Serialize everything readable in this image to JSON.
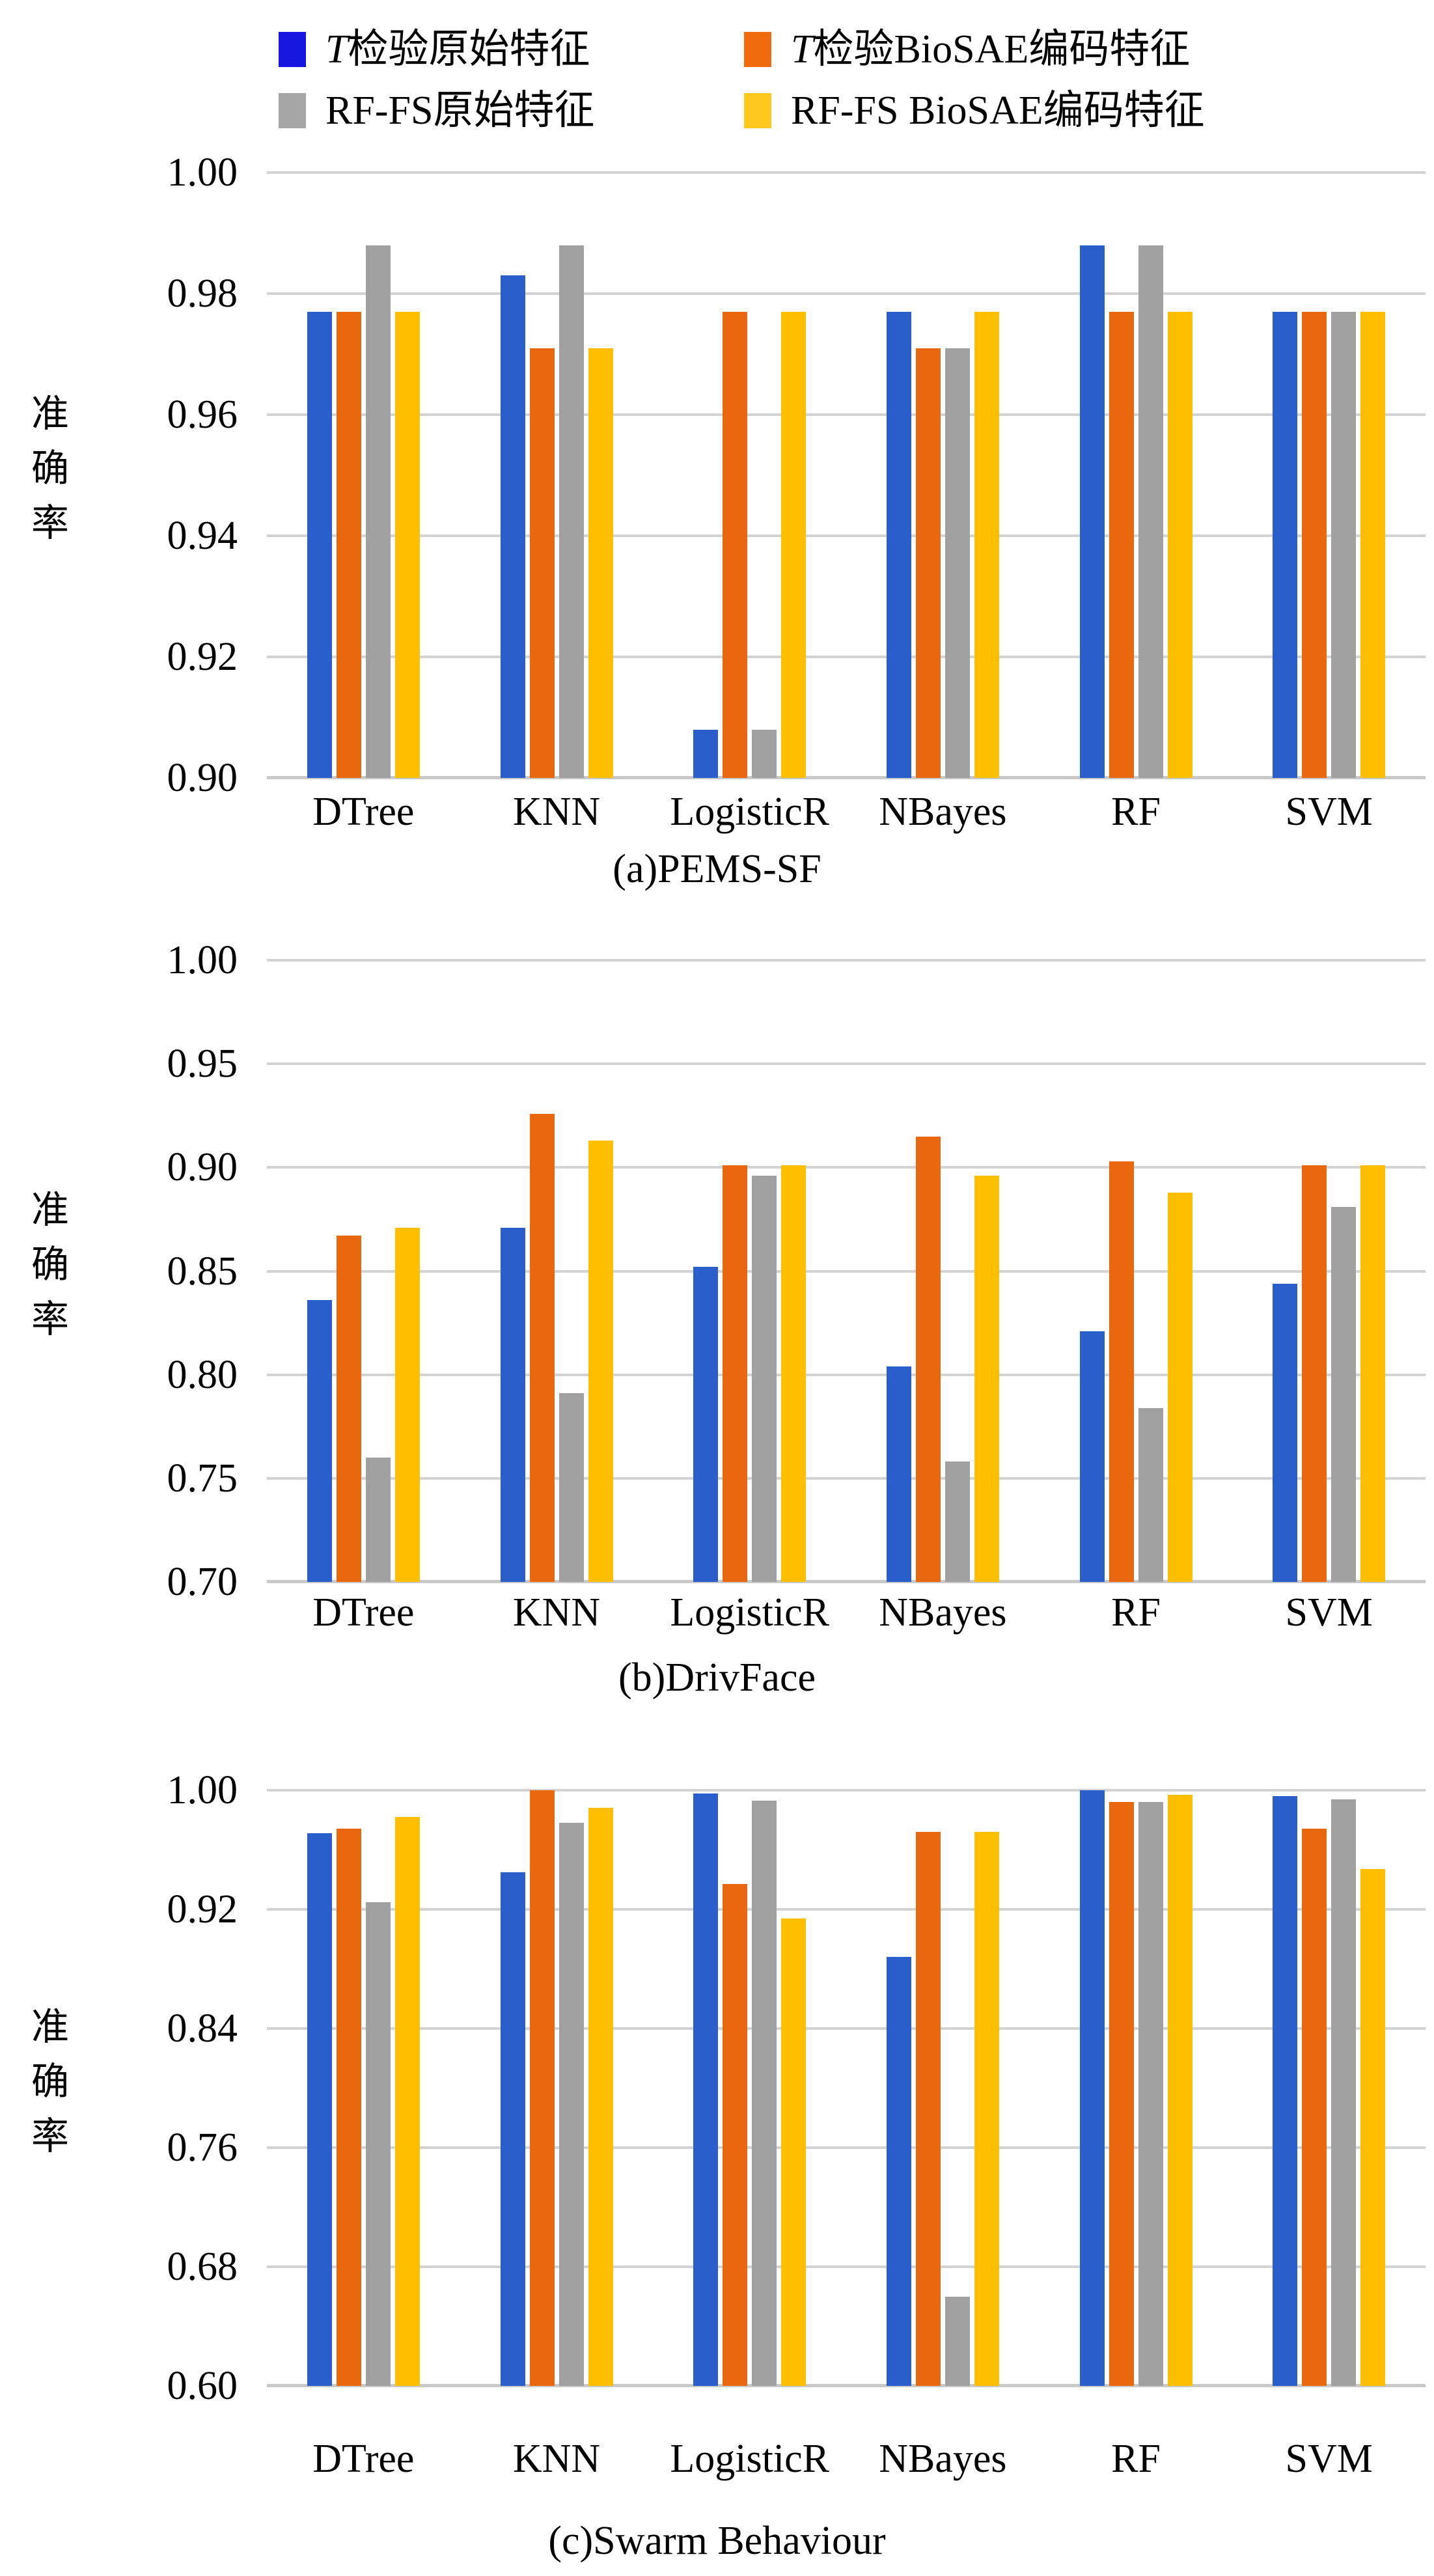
{
  "figure": {
    "background": "#ffffff"
  },
  "legend": {
    "items": [
      {
        "label": "T检验原始特征",
        "italic_prefix": "T",
        "swatch_color": "#1717df",
        "bar_color": "#2a5fcb"
      },
      {
        "label": "T检验BioSAE编码特征",
        "italic_prefix": "T",
        "swatch_color": "#f06a0e",
        "bar_color": "#e8670f"
      },
      {
        "label": "RF-FS原始特征",
        "italic_prefix": "",
        "swatch_color": "#a6a6a6",
        "bar_color": "#a0a0a0"
      },
      {
        "label": "RF-FS BioSAE编码特征",
        "italic_prefix": "",
        "swatch_color": "#ffc81e",
        "bar_color": "#ffbf00"
      }
    ]
  },
  "chart_data": [
    {
      "type": "bar",
      "title": "(a)PEMS-SF",
      "xlabel": "",
      "ylabel": "准确率",
      "ylim": [
        0.9,
        1.0
      ],
      "yticks": [
        1.0,
        0.98,
        0.96,
        0.94,
        0.92,
        0.9
      ],
      "grid": true,
      "legend_position": "top",
      "categories": [
        "DTree",
        "KNN",
        "LogisticR",
        "NBayes",
        "RF",
        "SVM"
      ],
      "series": [
        {
          "name": "T检验原始特征",
          "color": "#2a5fcb",
          "values": [
            0.977,
            0.983,
            0.908,
            0.977,
            0.988,
            0.977
          ]
        },
        {
          "name": "T检验BioSAE编码特征",
          "color": "#e8670f",
          "values": [
            0.977,
            0.971,
            0.977,
            0.971,
            0.977,
            0.977
          ]
        },
        {
          "name": "RF-FS原始特征",
          "color": "#a0a0a0",
          "values": [
            0.988,
            0.988,
            0.908,
            0.971,
            0.988,
            0.977
          ]
        },
        {
          "name": "RF-FS BioSAE编码特征",
          "color": "#ffbf00",
          "values": [
            0.977,
            0.971,
            0.977,
            0.977,
            0.977,
            0.977
          ]
        }
      ]
    },
    {
      "type": "bar",
      "title": "(b)DrivFace",
      "xlabel": "",
      "ylabel": "准确率",
      "ylim": [
        0.7,
        1.0
      ],
      "yticks": [
        1.0,
        0.95,
        0.9,
        0.85,
        0.8,
        0.75,
        0.7
      ],
      "grid": true,
      "legend_position": "top",
      "categories": [
        "DTree",
        "KNN",
        "LogisticR",
        "NBayes",
        "RF",
        "SVM"
      ],
      "series": [
        {
          "name": "T检验原始特征",
          "color": "#2a5fcb",
          "values": [
            0.836,
            0.871,
            0.852,
            0.804,
            0.821,
            0.844
          ]
        },
        {
          "name": "T检验BioSAE编码特征",
          "color": "#e8670f",
          "values": [
            0.867,
            0.926,
            0.901,
            0.915,
            0.903,
            0.901
          ]
        },
        {
          "name": "RF-FS原始特征",
          "color": "#a0a0a0",
          "values": [
            0.76,
            0.791,
            0.896,
            0.758,
            0.784,
            0.881
          ]
        },
        {
          "name": "RF-FS BioSAE编码特征",
          "color": "#ffbf00",
          "values": [
            0.871,
            0.913,
            0.901,
            0.896,
            0.888,
            0.901
          ]
        }
      ]
    },
    {
      "type": "bar",
      "title": "(c)Swarm Behaviour",
      "xlabel": "",
      "ylabel": "准确率",
      "ylim": [
        0.6,
        1.0
      ],
      "yticks": [
        1.0,
        0.92,
        0.84,
        0.76,
        0.68,
        0.6
      ],
      "grid": true,
      "legend_position": "top",
      "categories": [
        "DTree",
        "KNN",
        "LogisticR",
        "NBayes",
        "RF",
        "SVM"
      ],
      "series": [
        {
          "name": "T检验原始特征",
          "color": "#2a5fcb",
          "values": [
            0.971,
            0.945,
            0.998,
            0.888,
            1.0,
            0.996
          ]
        },
        {
          "name": "T检验BioSAE编码特征",
          "color": "#e8670f",
          "values": [
            0.974,
            1.0,
            0.937,
            0.972,
            0.992,
            0.974
          ]
        },
        {
          "name": "RF-FS原始特征",
          "color": "#a0a0a0",
          "values": [
            0.925,
            0.978,
            0.993,
            0.66,
            0.992,
            0.994
          ]
        },
        {
          "name": "RF-FS BioSAE编码特征",
          "color": "#ffbf00",
          "values": [
            0.982,
            0.988,
            0.914,
            0.972,
            0.997,
            0.947
          ]
        }
      ]
    }
  ]
}
